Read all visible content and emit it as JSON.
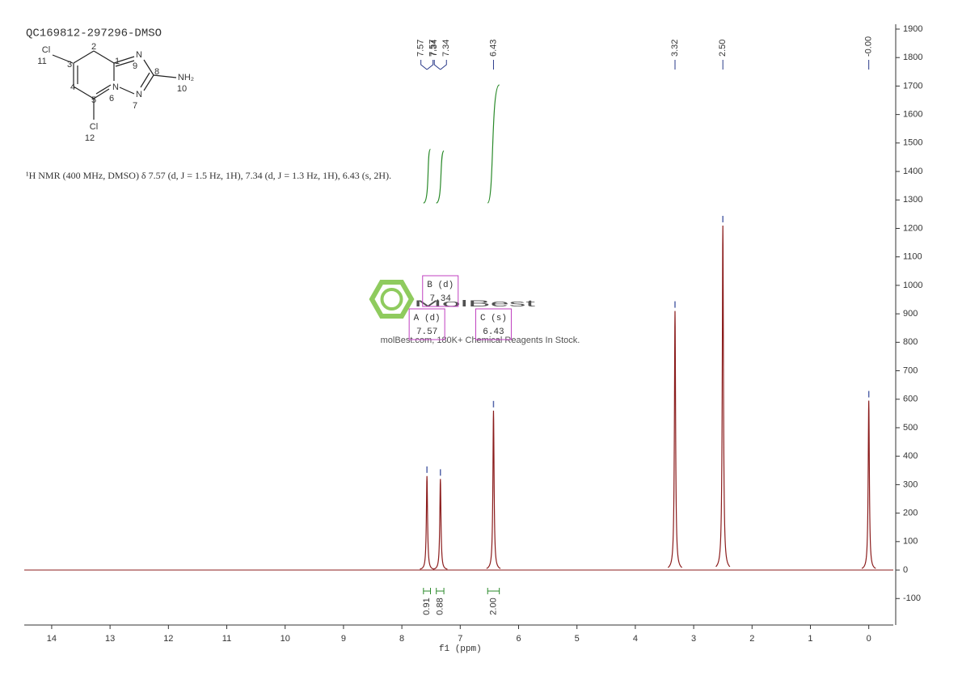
{
  "chart_data": {
    "type": "nmr",
    "title": "QC169812-297296-DMSO",
    "description": "¹H NMR (400 MHz, DMSO) δ 7.57 (d, J = 1.5 Hz, 1H), 7.34 (d, J = 1.3 Hz, 1H), 6.43 (s, 2H).",
    "x_label": "f1 (ppm)",
    "xlim": [
      14.47,
      -0.42
    ],
    "xticks": [
      14,
      13,
      12,
      11,
      10,
      9,
      8,
      7,
      6,
      5,
      4,
      3,
      2,
      1,
      0
    ],
    "ylim": [
      -193,
      1917
    ],
    "yticks": [
      -100,
      0,
      100,
      200,
      300,
      400,
      500,
      600,
      700,
      800,
      900,
      1000,
      1100,
      1200,
      1300,
      1400,
      1500,
      1600,
      1700,
      1800,
      1900
    ],
    "color": "#8b1c1c",
    "peaks": {
      "x": [
        7.57,
        7.34,
        6.43,
        3.32,
        2.5,
        0
      ],
      "values": [
        330,
        320,
        560,
        910,
        1210,
        595
      ]
    },
    "peak_labels": [
      7.57,
      7.57,
      7.34,
      7.34,
      6.43,
      3.32,
      {
        "value": 2.5,
        "label": "2.50"
      },
      {
        "value": 0,
        "label": "-0.00"
      }
    ],
    "integrals": [
      {
        "from": 7.63,
        "to": 7.51,
        "value": 0.91
      },
      {
        "from": 7.41,
        "to": 7.28,
        "value": 0.88
      },
      {
        "from": 6.53,
        "to": 6.33,
        "value": {
          "value": 2,
          "label": "2.00"
        }
      }
    ],
    "multiplets": [
      {
        "name": "A (d)",
        "shift": 7.57
      },
      {
        "name": "B (d)",
        "shift": 7.34
      },
      {
        "name": "C (s)",
        "shift": 6.43
      }
    ],
    "watermark": {
      "brand": "MolBest",
      "tagline": "molBest.com, 180K+ Chemical Reagents In Stock."
    },
    "structure": {
      "atoms": [
        {
          "label": "Cl",
          "number": "11"
        },
        {
          "number": "3"
        },
        {
          "number": "2"
        },
        {
          "number": "1"
        },
        {
          "label": "N",
          "number": "9"
        },
        {
          "number": "8"
        },
        {
          "label": "NH₂",
          "number": "10"
        },
        {
          "label": "N",
          "number": "7"
        },
        {
          "label": "N",
          "number": "6"
        },
        {
          "number": "5"
        },
        {
          "number": "4"
        },
        {
          "label": "Cl",
          "number": "12"
        }
      ]
    }
  }
}
